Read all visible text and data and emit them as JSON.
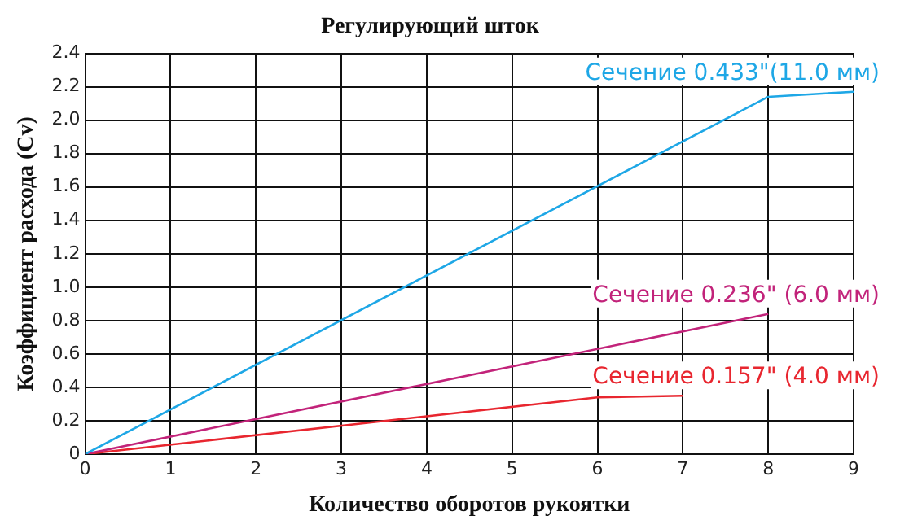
{
  "chart_data": {
    "type": "line",
    "title": "Регулирующий шток",
    "xlabel": "Количество оборотов рукоятки",
    "ylabel": "Коэффициент расхода (Cv)",
    "xlim": [
      0,
      9
    ],
    "xticks": [
      0,
      1,
      2,
      3,
      4,
      5,
      6,
      7,
      8,
      9
    ],
    "ylim": [
      0,
      2.4
    ],
    "yticks": [
      0,
      0.2,
      0.4,
      0.6,
      0.8,
      {
        "value": 1,
        "label": "1.0"
      },
      1.2,
      1.4,
      1.6,
      1.8,
      {
        "value": 2,
        "label": "2.0"
      },
      2.2,
      2.4
    ],
    "grid": true,
    "legend": false,
    "marker": "none",
    "line_style": "solid",
    "series": [
      {
        "name": "Сечение 0.433\"(11.0 мм)",
        "color": "#1ea7e6",
        "x": [
          0,
          8,
          9
        ],
        "values": [
          0,
          2.14,
          2.17
        ]
      },
      {
        "name": "Сечение 0.236\" (6.0 мм)",
        "color": "#c2237a",
        "x": [
          0,
          8
        ],
        "values": [
          0,
          0.84
        ]
      },
      {
        "name": "Сечение 0.157\" (4.0 мм)",
        "color": "#e8262f",
        "x": [
          0,
          6,
          7
        ],
        "values": [
          0,
          0.34,
          0.35
        ]
      }
    ]
  }
}
